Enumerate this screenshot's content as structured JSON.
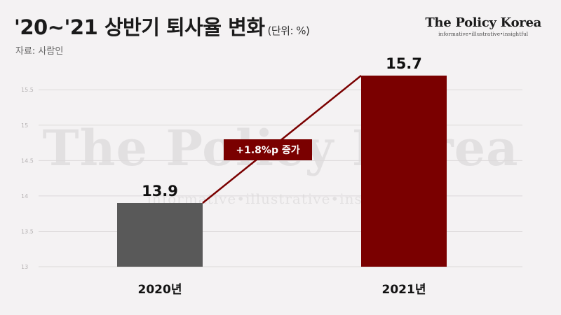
{
  "header": {
    "title": "'20~'21 상반기 퇴사율 변화",
    "unit": "(단위: %)",
    "source": "자료: 사람인"
  },
  "brand": {
    "name": "The Policy Korea",
    "tagline": "informative•illustrative•insightful"
  },
  "chart_data": {
    "type": "bar",
    "categories": [
      "2020년",
      "2021년"
    ],
    "values": [
      13.9,
      15.7
    ],
    "value_labels": [
      "13.9",
      "15.7"
    ],
    "colors": [
      "#595959",
      "#7a0000"
    ],
    "ylim": [
      13,
      15.7
    ],
    "yticks": [
      "13",
      "13.5",
      "14",
      "14.5",
      "15",
      "15.5"
    ],
    "annotation": "+1.8%p 증가",
    "annotation_color": "#7a0000",
    "grid": true,
    "legend": "none",
    "title": "'20~'21 상반기 퇴사율 변화",
    "xlabel": "",
    "ylabel": ""
  }
}
